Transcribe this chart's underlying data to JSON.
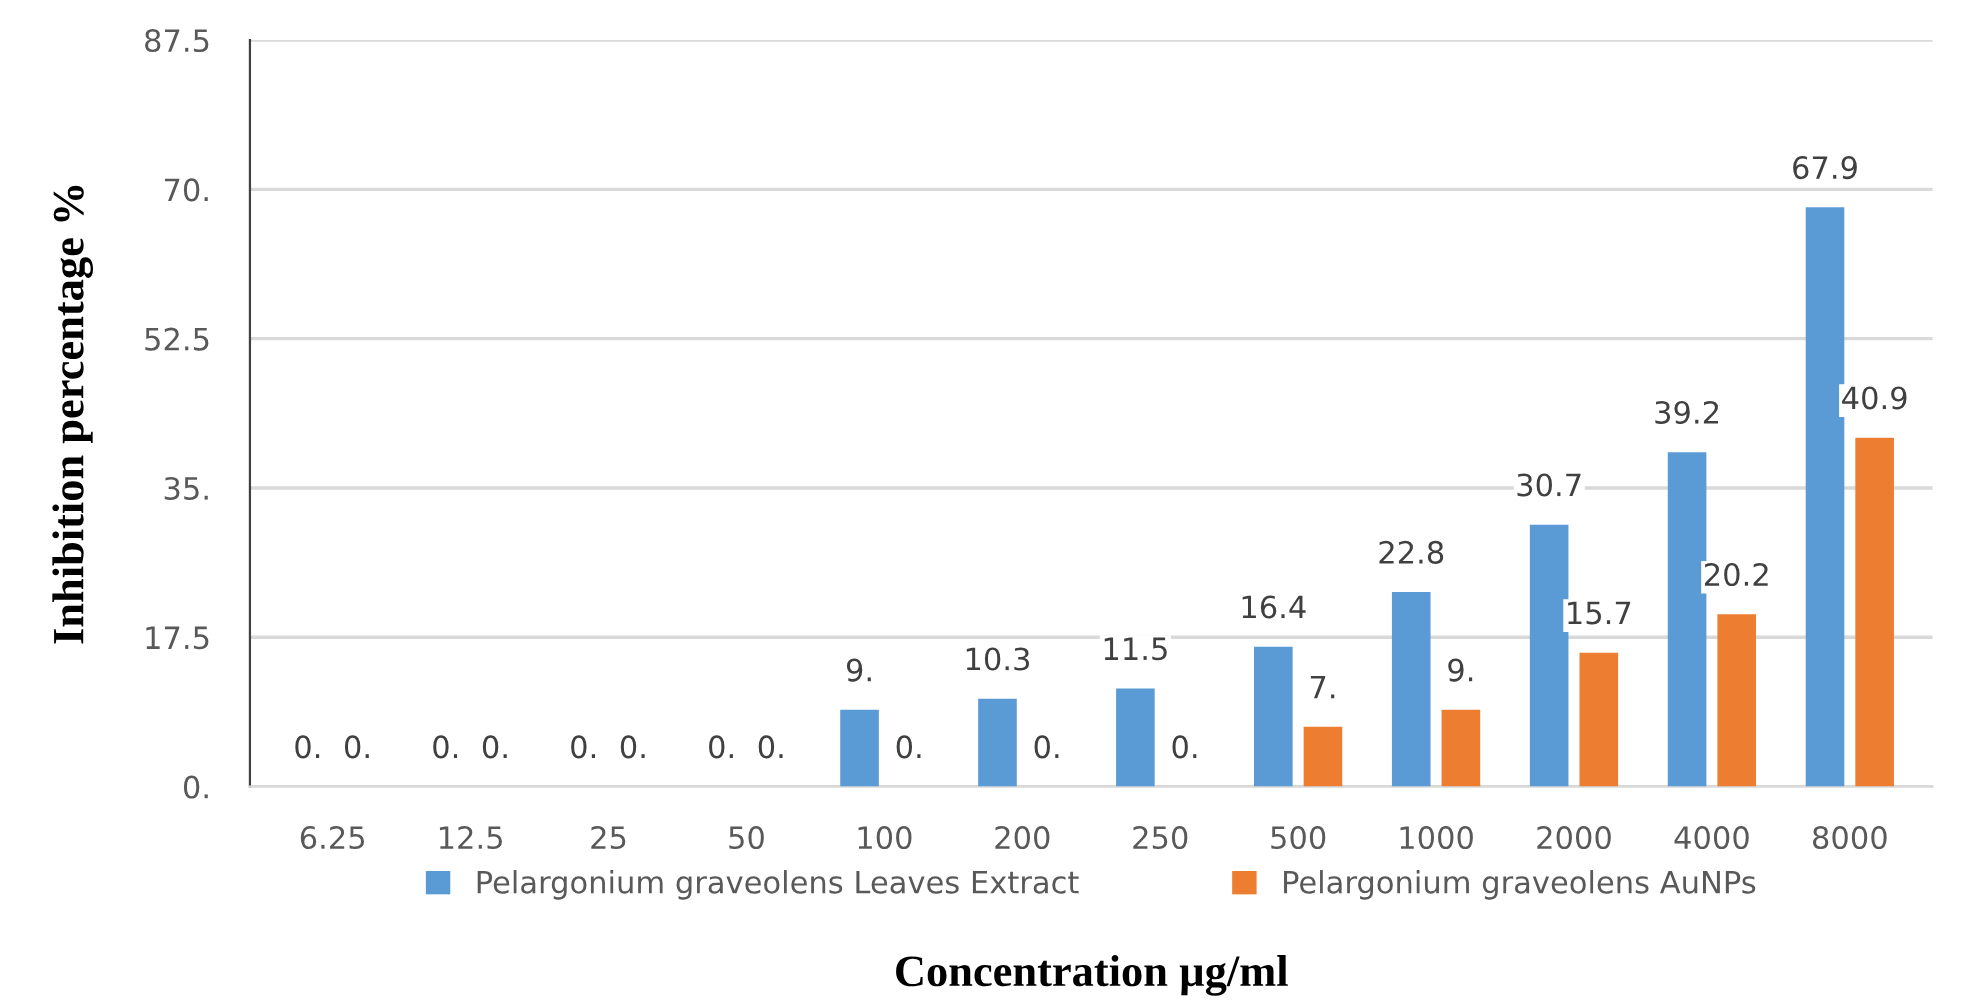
{
  "chart_data": {
    "type": "bar",
    "xlabel": "Concentration µg/ml",
    "ylabel": "Inhibition percentage %",
    "categories": [
      "6.25",
      "12.5",
      "25",
      "50",
      "100",
      "200",
      "250",
      "500",
      "1000",
      "2000",
      "4000",
      "8000"
    ],
    "series": [
      {
        "name": "Pelargonium graveolens Leaves Extract",
        "color": "#5b9bd5",
        "values": [
          0,
          0,
          0,
          0,
          9,
          10.3,
          11.5,
          16.4,
          22.8,
          30.7,
          39.2,
          67.9
        ],
        "value_labels": [
          "0.",
          "0.",
          "0.",
          "0.",
          "9.",
          "10.3",
          "11.5",
          "16.4",
          "22.8",
          "30.7",
          "39.2",
          "67.9"
        ]
      },
      {
        "name": "Pelargonium graveolens AuNPs",
        "color": "#ed7d31",
        "values": [
          0,
          0,
          0,
          0,
          0,
          0,
          0,
          7,
          9,
          15.7,
          20.2,
          40.9
        ],
        "value_labels": [
          "0.",
          "0.",
          "0.",
          "0.",
          "0.",
          "0.",
          "0.",
          "7.",
          "9.",
          "15.7",
          "20.2",
          "40.9"
        ]
      }
    ],
    "ylim": [
      0,
      87.5
    ],
    "yticks": [
      {
        "value": 0,
        "label": "0."
      },
      17.5,
      {
        "value": 35,
        "label": "35."
      },
      52.5,
      {
        "value": 70,
        "label": "70."
      },
      87.5
    ],
    "grid": "y",
    "legend": "bottom"
  }
}
